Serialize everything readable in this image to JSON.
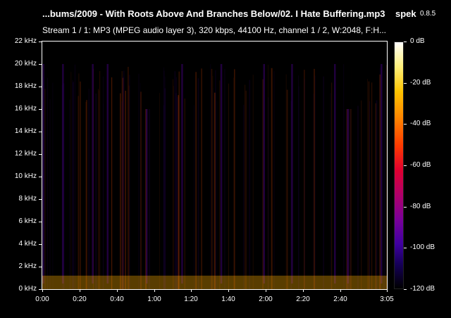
{
  "header": {
    "file_title": "...bums/2009 - With Roots Above And Branches Below/02. I Hate Buffering.mp3",
    "app_name": "spek",
    "app_version": "0.8.5",
    "stream_info": "Stream 1 / 1: MP3 (MPEG audio layer 3), 320 kbps, 44100 Hz, channel 1 / 2, W:2048, F:H..."
  },
  "chart_data": {
    "type": "heatmap",
    "title": "",
    "xlabel": "",
    "ylabel": "",
    "x_unit": "time (m:ss)",
    "y_unit": "kHz",
    "xlim": [
      0,
      185
    ],
    "ylim": [
      0,
      22
    ],
    "x_tick_labels": [
      "0:00",
      "0:20",
      "0:40",
      "1:00",
      "1:20",
      "1:40",
      "2:00",
      "2:20",
      "2:40",
      "3:05"
    ],
    "x_tick_values": [
      0,
      20,
      40,
      60,
      80,
      100,
      120,
      140,
      160,
      185
    ],
    "y_tick_labels": [
      "0 kHz",
      "2 kHz",
      "4 kHz",
      "6 kHz",
      "8 kHz",
      "10 kHz",
      "12 kHz",
      "14 kHz",
      "16 kHz",
      "18 kHz",
      "20 kHz",
      "22 kHz"
    ],
    "y_tick_values": [
      0,
      2,
      4,
      6,
      8,
      10,
      12,
      14,
      16,
      18,
      20,
      22
    ],
    "color_scale": {
      "labels": [
        "0 dB",
        "-20 dB",
        "-40 dB",
        "-60 dB",
        "-80 dB",
        "-100 dB",
        "-120 dB"
      ],
      "values": [
        0,
        -20,
        -40,
        -60,
        -80,
        -100,
        -120
      ],
      "colors": [
        "#ffffff",
        "#fff07a",
        "#ff8a00",
        "#e00030",
        "#7a009a",
        "#16005a",
        "#000000"
      ]
    },
    "cutoff_khz": 20,
    "notches": [
      {
        "start_s": 6,
        "end_s": 10,
        "floor_khz": 16
      },
      {
        "start_s": 54,
        "end_s": 58,
        "floor_khz": 16
      },
      {
        "start_s": 162,
        "end_s": 166,
        "floor_khz": 16
      }
    ],
    "quiet_gaps_s": [
      0.5,
      11,
      27,
      35,
      56,
      75,
      96,
      119,
      134,
      157,
      164,
      182
    ],
    "grid": false,
    "legend": "right"
  }
}
